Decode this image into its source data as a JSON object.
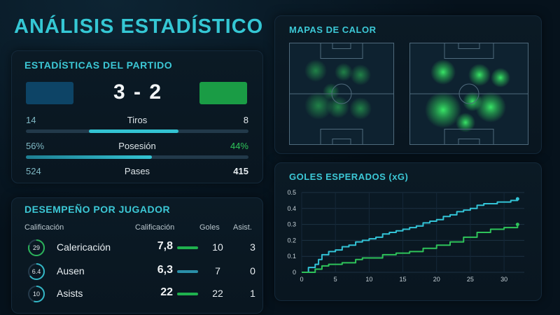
{
  "page_title": "ANÁLISIS ESTADÍSTICO",
  "match": {
    "title": "ESTADÍSTICAS DEL PARTIDO",
    "team_a_color": "#0d4466",
    "team_b_color": "#1a9c45",
    "score": "3 - 2",
    "stats": [
      {
        "left": "14",
        "label": "Tiros",
        "right": "8",
        "left_share": 0.64
      },
      {
        "left": "56%",
        "label": "Posesión",
        "right": "44%",
        "left_share": 0.56
      },
      {
        "left": "524",
        "label": "Pases",
        "right": "415"
      }
    ]
  },
  "players": {
    "title": "DESEMPEÑO POR JUGADOR",
    "headers": {
      "col1": "Calificación",
      "col2": "Calificación",
      "col3": "Goles",
      "col4": "Asist."
    },
    "rows": [
      {
        "badge": "29",
        "name": "Calericación",
        "rating": "7,8",
        "goals": "10",
        "assists": "3",
        "bar_color": "#1fb14e",
        "ring_color": "#2bb35a",
        "ring_fraction": 0.8
      },
      {
        "badge": "6.4",
        "name": "Ausen",
        "rating": "6,3",
        "goals": "7",
        "assists": "0",
        "bar_color": "#2a8fa8",
        "ring_color": "#33b7c6",
        "ring_fraction": 0.65
      },
      {
        "badge": "10",
        "name": "Asists",
        "rating": "22",
        "goals": "22",
        "assists": "1",
        "bar_color": "#1fb14e",
        "ring_color": "#33b7c6",
        "ring_fraction": 0.55
      }
    ]
  },
  "heatmaps": {
    "title": "MAPAS DE CALOR",
    "accent": "#2fd05a"
  },
  "xg": {
    "title": "GOLES ESPERADOS (xG)"
  },
  "chart_data": {
    "type": "line",
    "title": "GOLES ESPERADOS (xG)",
    "xlim": [
      0,
      33
    ],
    "ylim": [
      0,
      0.5
    ],
    "xticks": [
      0,
      5,
      10,
      15,
      20,
      25,
      30
    ],
    "yticks": [
      0,
      0.1,
      0.2,
      0.3,
      0.4,
      0.5
    ],
    "ytick_labels": [
      "0",
      "0.1",
      "0.2",
      "0.3",
      "0.4",
      "0.5"
    ],
    "grid": true,
    "series": [
      {
        "color": "#33c3d6",
        "x": [
          0,
          1,
          2,
          2.5,
          3,
          4,
          5,
          6,
          7,
          8,
          9,
          10,
          11,
          12,
          13,
          14,
          15,
          16,
          17,
          18,
          19,
          20,
          21,
          22,
          23,
          24,
          25,
          26,
          27,
          28,
          29,
          30,
          31,
          32
        ],
        "y": [
          0,
          0.03,
          0.05,
          0.08,
          0.11,
          0.13,
          0.14,
          0.16,
          0.17,
          0.19,
          0.2,
          0.21,
          0.22,
          0.24,
          0.25,
          0.26,
          0.27,
          0.28,
          0.29,
          0.31,
          0.32,
          0.33,
          0.35,
          0.36,
          0.38,
          0.39,
          0.4,
          0.42,
          0.43,
          0.43,
          0.44,
          0.44,
          0.45,
          0.46
        ]
      },
      {
        "color": "#2ec35a",
        "x": [
          0,
          2,
          3,
          4,
          6,
          8,
          9,
          12,
          14,
          16,
          18,
          20,
          22,
          24,
          26,
          28,
          30,
          32
        ],
        "y": [
          0,
          0.02,
          0.04,
          0.05,
          0.06,
          0.08,
          0.09,
          0.11,
          0.12,
          0.13,
          0.15,
          0.17,
          0.19,
          0.22,
          0.25,
          0.27,
          0.28,
          0.3
        ]
      }
    ]
  }
}
